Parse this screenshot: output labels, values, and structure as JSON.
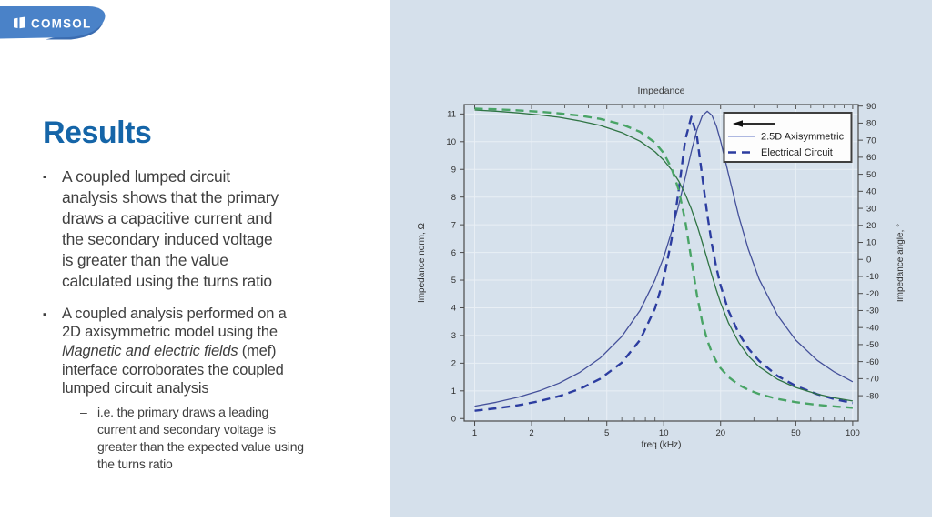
{
  "logo": {
    "text": "COMSOL"
  },
  "slide": {
    "title": "Results",
    "bullet_marker": "▪",
    "sub_marker": "–",
    "bullets": [
      {
        "text": "A coupled lumped circuit\nanalysis shows that the primary\ndraws a capacitive current and\nthe secondary induced voltage\nis greater than the value\ncalculated using the turns ratio"
      },
      {
        "text_before": "A coupled analysis performed on a\n2D axisymmetric model using the\n",
        "italic": "Magnetic and electric fields",
        "text_after": " (mef)\ninterface corroborates the coupled\nlumped circuit analysis",
        "sub_bullets": [
          "i.e. the primary draws a leading\ncurrent and secondary voltage is\ngreater than the expected value using\nthe turns ratio"
        ]
      }
    ]
  },
  "colors": {
    "panel_bg": "#d5e0eb",
    "plot_bg": "#d6e1ec",
    "grid": "#e9eff5",
    "frame": "#4a4a4a",
    "tick_text": "#2e2e2e",
    "logo_blue": "#4a82c8",
    "logo_shadow": "#3b6cb0",
    "title_blue": "#1565a8",
    "legend_bg": "#fdfdfd",
    "legend_border": "#3f3f3f",
    "arrow_black": "#111111"
  },
  "chart_data": {
    "type": "line",
    "title": "Impedance",
    "xlabel": "freq (kHz)",
    "ylabel_left": "Impedance norm, Ω",
    "ylabel_right": "Impedance angle, °",
    "x_scale": "log",
    "grid": true,
    "xlim": [
      0.88,
      107
    ],
    "x_ticks": [
      1,
      2,
      5,
      10,
      20,
      50,
      100
    ],
    "x_minor_ticks": [
      3,
      4,
      6,
      7,
      8,
      9,
      30,
      40,
      60,
      70,
      80,
      90
    ],
    "ylim_left": [
      -0.09,
      11.34
    ],
    "yticks_left": [
      0,
      1,
      2,
      3,
      4,
      5,
      6,
      7,
      8,
      9,
      10,
      11
    ],
    "ylim_right": [
      -94.9,
      90.9
    ],
    "yticks_right": [
      90,
      80,
      70,
      60,
      50,
      40,
      30,
      20,
      10,
      0,
      -10,
      -20,
      -30,
      -40,
      -50,
      -60,
      -70,
      -80
    ],
    "legend": {
      "position": "top-right",
      "arrow": "points-left-to-norm-axis",
      "entries": [
        {
          "label": "2.5D Axisymmetric",
          "style": "solid",
          "color": "#93a2d8"
        },
        {
          "label": "Electrical Circuit",
          "style": "dashed",
          "color": "#2c3da0"
        }
      ]
    },
    "x": [
      1,
      1.3,
      1.7,
      2.2,
      2.8,
      3.6,
      4.6,
      6,
      7.5,
      9,
      10,
      11,
      12,
      13,
      14,
      15,
      16,
      17,
      18,
      19,
      20,
      22,
      25,
      28,
      32,
      40,
      50,
      65,
      80,
      100
    ],
    "series": [
      {
        "name": "2.5D Axisymmetric — Impedance norm",
        "axis": "left",
        "style": "solid",
        "color": "#44509a",
        "width": 1.3,
        "values": [
          0.45,
          0.59,
          0.77,
          1.0,
          1.28,
          1.67,
          2.18,
          2.96,
          3.91,
          5.01,
          5.83,
          6.74,
          7.71,
          8.71,
          9.65,
          10.43,
          10.93,
          11.1,
          10.95,
          10.56,
          10.03,
          8.84,
          7.28,
          6.12,
          5.03,
          3.73,
          2.83,
          2.1,
          1.68,
          1.33
        ]
      },
      {
        "name": "Electrical Circuit — Impedance norm",
        "axis": "left",
        "style": "dashed",
        "color": "#2c3da0",
        "width": 2.4,
        "values": [
          0.28,
          0.37,
          0.48,
          0.63,
          0.81,
          1.07,
          1.43,
          2.02,
          2.84,
          3.98,
          5.05,
          6.46,
          8.25,
          10.07,
          10.9,
          10.17,
          8.74,
          7.37,
          6.29,
          5.45,
          4.81,
          3.9,
          3.06,
          2.53,
          2.08,
          1.54,
          1.18,
          0.88,
          0.7,
          0.56
        ]
      },
      {
        "name": "2.5D Axisymmetric — Impedance angle",
        "axis": "right",
        "style": "solid",
        "color": "#2f7444",
        "width": 1.3,
        "values": [
          87.7,
          87,
          86,
          84.8,
          83.4,
          81.3,
          78.7,
          74.5,
          69.4,
          63.2,
          58.3,
          52.6,
          46,
          38.3,
          29.6,
          20.1,
          10,
          0,
          -9.4,
          -18,
          -25.4,
          -37.2,
          -49,
          -56.6,
          -63,
          -70.4,
          -75.2,
          -79.1,
          -81.3,
          -83.1
        ]
      },
      {
        "name": "Electrical Circuit — Impedance angle",
        "axis": "right",
        "style": "dashed",
        "color": "#49a466",
        "width": 2.4,
        "values": [
          88.5,
          88.1,
          87.5,
          86.7,
          85.7,
          84.4,
          82.5,
          79.3,
          74.9,
          68.6,
          62.4,
          53.6,
          40.8,
          22.5,
          0,
          -21.1,
          -36.8,
          -47.5,
          -54.8,
          -60,
          -63.8,
          -69,
          -73.7,
          -76.6,
          -79,
          -81.9,
          -83.8,
          -85.4,
          -86.3,
          -87.1
        ]
      }
    ]
  }
}
